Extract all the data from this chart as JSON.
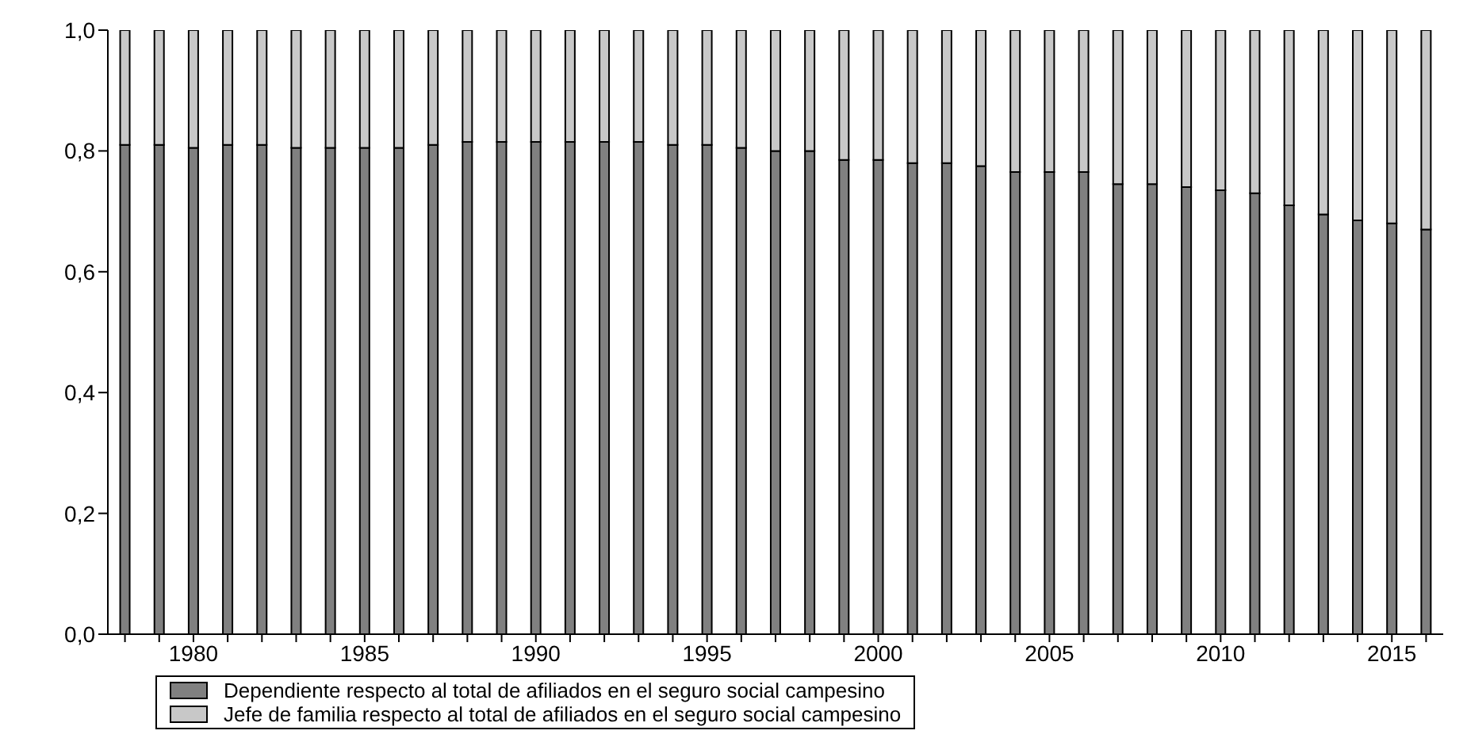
{
  "chart_data": {
    "type": "bar",
    "stacked": true,
    "categories": [
      null,
      null,
      "1980",
      null,
      null,
      null,
      null,
      "1985",
      null,
      null,
      null,
      null,
      "1990",
      null,
      null,
      null,
      null,
      "1995",
      null,
      null,
      null,
      null,
      "2000",
      null,
      null,
      null,
      null,
      "2005",
      null,
      null,
      null,
      null,
      "2010",
      null,
      null,
      null,
      null,
      "2015",
      null
    ],
    "series": [
      {
        "name": "Dependiente respecto al total de afiliados en el seguro social campesino",
        "color": "#808080",
        "values": [
          0.81,
          0.81,
          0.805,
          0.81,
          0.81,
          0.805,
          0.805,
          0.805,
          0.805,
          0.81,
          0.815,
          0.815,
          0.815,
          0.815,
          0.815,
          0.815,
          0.81,
          0.81,
          0.805,
          0.8,
          0.8,
          0.785,
          0.785,
          0.78,
          0.78,
          0.775,
          0.765,
          0.765,
          0.765,
          0.745,
          0.745,
          0.74,
          0.735,
          0.73,
          0.71,
          0.695,
          0.685,
          0.68,
          0.67
        ]
      },
      {
        "name": "Jefe de familia respecto al total de afiliados en el seguro social campesino",
        "color": "#c8c8c8",
        "values": [
          0.19,
          0.19,
          0.195,
          0.19,
          0.19,
          0.195,
          0.195,
          0.195,
          0.195,
          0.19,
          0.185,
          0.185,
          0.185,
          0.185,
          0.185,
          0.185,
          0.19,
          0.19,
          0.195,
          0.2,
          0.2,
          0.215,
          0.215,
          0.22,
          0.22,
          0.225,
          0.235,
          0.235,
          0.235,
          0.255,
          0.255,
          0.26,
          0.265,
          0.27,
          0.29,
          0.305,
          0.315,
          0.32,
          0.33
        ]
      }
    ],
    "ylim": [
      0,
      1
    ],
    "yticks": [
      {
        "value": 0,
        "label": "0,0"
      },
      {
        "value": 0.2,
        "label": "0,2"
      },
      {
        "value": 0.4,
        "label": "0,4"
      },
      {
        "value": 0.6,
        "label": "0,6"
      },
      {
        "value": 0.8,
        "label": "0,8"
      },
      {
        "value": 1,
        "label": "1,0"
      }
    ],
    "legend": "bottom"
  }
}
